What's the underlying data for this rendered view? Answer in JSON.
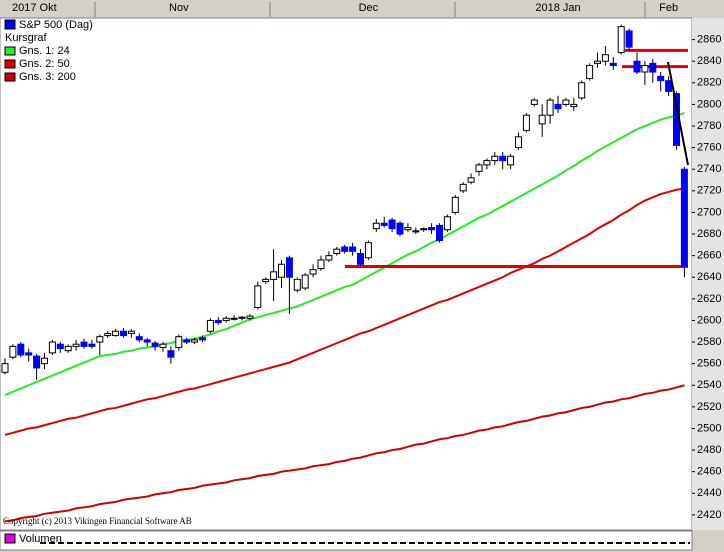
{
  "chart_data": {
    "type": "candlestick",
    "name": "S&P 500 (Dag)",
    "subtitle": "Kursgraf",
    "footer": "Copyright (c) 2013 Vikingen Financial Software AB",
    "volume_label": "Volumen",
    "up_color": "#ffffff",
    "down_color": "#0000ff",
    "categories": [
      "2017 Okt",
      null,
      null,
      null,
      null,
      null,
      null,
      null,
      null,
      null,
      null,
      null,
      null,
      null,
      null,
      null,
      null,
      null,
      null,
      null,
      null,
      null,
      "Nov",
      null,
      null,
      null,
      null,
      null,
      null,
      null,
      null,
      null,
      null,
      null,
      null,
      null,
      null,
      null,
      null,
      null,
      null,
      null,
      null,
      null,
      null,
      null,
      "Dec",
      null,
      null,
      null,
      null,
      null,
      null,
      null,
      null,
      null,
      null,
      null,
      null,
      null,
      null,
      null,
      null,
      null,
      null,
      null,
      null,
      null,
      null,
      null,
      "2018 Jan",
      null,
      null,
      null,
      null,
      null,
      null,
      null,
      null,
      null,
      null,
      null,
      null,
      null,
      "Feb",
      null,
      null
    ],
    "open": [
      2552,
      2566,
      2578,
      2570,
      2567,
      2560,
      2570,
      2578,
      2572,
      2576,
      2580,
      2578,
      2580,
      2586,
      2586,
      2590,
      2588,
      2585,
      2582,
      2579,
      2575,
      2572,
      2575,
      2582,
      2580,
      2584,
      2590,
      2600,
      2600,
      2602,
      2602,
      2602,
      2612,
      2636,
      2638,
      2640,
      2658,
      2628,
      2630,
      2643,
      2648,
      2656,
      2662,
      2668,
      2668,
      2662,
      2658,
      2685,
      2690,
      2693,
      2690,
      2684,
      2682,
      2684,
      2686,
      2688,
      2684,
      2700,
      2720,
      2728,
      2738,
      2744,
      2748,
      2752,
      2744,
      2760,
      2776,
      2800,
      2782,
      2790,
      2800,
      2800,
      2798,
      2806,
      2824,
      2838,
      2840,
      2838,
      2848,
      2868,
      2840,
      2830,
      2838,
      2826,
      2822,
      2810,
      2740
    ],
    "high": [
      2565,
      2578,
      2580,
      2574,
      2569,
      2570,
      2582,
      2580,
      2578,
      2582,
      2583,
      2582,
      2587,
      2590,
      2592,
      2593,
      2592,
      2588,
      2584,
      2581,
      2580,
      2576,
      2587,
      2584,
      2584,
      2586,
      2602,
      2603,
      2604,
      2605,
      2604,
      2606,
      2636,
      2640,
      2666,
      2656,
      2660,
      2640,
      2644,
      2652,
      2660,
      2664,
      2668,
      2670,
      2672,
      2666,
      2674,
      2694,
      2696,
      2695,
      2692,
      2690,
      2686,
      2686,
      2690,
      2690,
      2698,
      2716,
      2728,
      2736,
      2746,
      2750,
      2756,
      2756,
      2754,
      2774,
      2792,
      2806,
      2800,
      2806,
      2808,
      2806,
      2806,
      2822,
      2838,
      2848,
      2854,
      2844,
      2874,
      2870,
      2848,
      2840,
      2842,
      2830,
      2826,
      2812,
      2742
    ],
    "low": [
      2550,
      2564,
      2566,
      2562,
      2545,
      2555,
      2568,
      2570,
      2570,
      2572,
      2574,
      2574,
      2568,
      2584,
      2585,
      2584,
      2584,
      2580,
      2576,
      2572,
      2571,
      2560,
      2572,
      2578,
      2578,
      2580,
      2588,
      2596,
      2598,
      2600,
      2600,
      2600,
      2610,
      2634,
      2618,
      2630,
      2606,
      2626,
      2628,
      2640,
      2646,
      2654,
      2660,
      2662,
      2660,
      2650,
      2656,
      2682,
      2686,
      2682,
      2678,
      2682,
      2680,
      2682,
      2680,
      2672,
      2682,
      2698,
      2718,
      2726,
      2734,
      2740,
      2744,
      2740,
      2740,
      2758,
      2774,
      2798,
      2770,
      2782,
      2792,
      2798,
      2794,
      2804,
      2822,
      2834,
      2836,
      2832,
      2846,
      2850,
      2828,
      2818,
      2820,
      2812,
      2808,
      2758,
      2640
    ],
    "close": [
      2560,
      2576,
      2568,
      2568,
      2556,
      2565,
      2580,
      2574,
      2576,
      2578,
      2576,
      2576,
      2585,
      2588,
      2590,
      2586,
      2590,
      2582,
      2580,
      2576,
      2578,
      2566,
      2585,
      2580,
      2582,
      2582,
      2600,
      2598,
      2602,
      2602,
      2603,
      2604,
      2632,
      2638,
      2645,
      2652,
      2640,
      2638,
      2642,
      2647,
      2656,
      2660,
      2666,
      2664,
      2664,
      2652,
      2672,
      2690,
      2688,
      2685,
      2680,
      2686,
      2683,
      2685,
      2684,
      2674,
      2696,
      2714,
      2726,
      2732,
      2744,
      2748,
      2752,
      2748,
      2752,
      2770,
      2790,
      2804,
      2790,
      2804,
      2796,
      2804,
      2800,
      2820,
      2836,
      2840,
      2846,
      2836,
      2872,
      2853,
      2830,
      2836,
      2830,
      2822,
      2812,
      2762,
      2650
    ],
    "series": [
      {
        "name": "Gns. 1: 24",
        "color": "#22ee22",
        "values": [
          2531,
          2534,
          2537,
          2540,
          2543,
          2546,
          2549,
          2552,
          2555,
          2558,
          2561,
          2564,
          2567,
          2568,
          2569,
          2571,
          2572,
          2574,
          2575,
          2576,
          2578,
          2579,
          2581,
          2582,
          2583,
          2585,
          2587,
          2590,
          2592,
          2595,
          2598,
          2601,
          2603,
          2605,
          2607,
          2609,
          2611,
          2613,
          2616,
          2619,
          2622,
          2625,
          2628,
          2631,
          2633,
          2637,
          2641,
          2645,
          2649,
          2653,
          2657,
          2661,
          2664,
          2668,
          2672,
          2675,
          2679,
          2683,
          2687,
          2691,
          2695,
          2698,
          2702,
          2706,
          2710,
          2714,
          2718,
          2722,
          2726,
          2730,
          2734,
          2739,
          2743,
          2748,
          2752,
          2757,
          2761,
          2765,
          2769,
          2773,
          2777,
          2780,
          2783,
          2786,
          2788,
          2790,
          2792
        ]
      },
      {
        "name": "Gns. 2: 50",
        "color": "#dd0000",
        "values": [
          2494,
          2496,
          2498,
          2500,
          2501,
          2503,
          2505,
          2507,
          2509,
          2510,
          2512,
          2514,
          2516,
          2518,
          2519,
          2521,
          2523,
          2525,
          2527,
          2528,
          2530,
          2532,
          2534,
          2536,
          2537,
          2539,
          2541,
          2543,
          2545,
          2547,
          2549,
          2551,
          2553,
          2555,
          2557,
          2559,
          2561,
          2564,
          2567,
          2570,
          2573,
          2576,
          2579,
          2582,
          2585,
          2588,
          2590,
          2593,
          2596,
          2599,
          2602,
          2605,
          2608,
          2611,
          2614,
          2617,
          2619,
          2622,
          2625,
          2628,
          2631,
          2634,
          2637,
          2640,
          2644,
          2647,
          2650,
          2653,
          2657,
          2660,
          2664,
          2668,
          2672,
          2676,
          2680,
          2685,
          2689,
          2693,
          2698,
          2702,
          2707,
          2711,
          2714,
          2717,
          2719,
          2721,
          2722
        ]
      },
      {
        "name": "Gns. 3: 200",
        "color": "#cc0000",
        "values": [
          2414,
          2415,
          2417,
          2418,
          2419,
          2421,
          2422,
          2423,
          2424,
          2426,
          2427,
          2428,
          2430,
          2431,
          2432,
          2434,
          2435,
          2436,
          2437,
          2439,
          2440,
          2441,
          2443,
          2444,
          2445,
          2447,
          2448,
          2449,
          2450,
          2452,
          2453,
          2454,
          2456,
          2457,
          2458,
          2460,
          2461,
          2462,
          2463,
          2465,
          2466,
          2467,
          2469,
          2470,
          2472,
          2473,
          2475,
          2477,
          2478,
          2480,
          2481,
          2483,
          2485,
          2486,
          2488,
          2490,
          2491,
          2493,
          2494,
          2496,
          2498,
          2499,
          2501,
          2502,
          2504,
          2506,
          2507,
          2509,
          2511,
          2512,
          2514,
          2515,
          2517,
          2519,
          2520,
          2522,
          2524,
          2525,
          2527,
          2528,
          2530,
          2532,
          2533,
          2535,
          2536,
          2538,
          2540
        ]
      }
    ],
    "horizontal_lines": {
      "color": "#e00000",
      "values": [
        2850,
        2835,
        2650
      ]
    },
    "ylim": [
      2406,
      2880
    ],
    "yticks": [
      2420,
      2440,
      2460,
      2480,
      2500,
      2520,
      2540,
      2560,
      2580,
      2600,
      2620,
      2640,
      2660,
      2680,
      2700,
      2720,
      2740,
      2760,
      2780,
      2800,
      2820,
      2840,
      2860
    ]
  }
}
